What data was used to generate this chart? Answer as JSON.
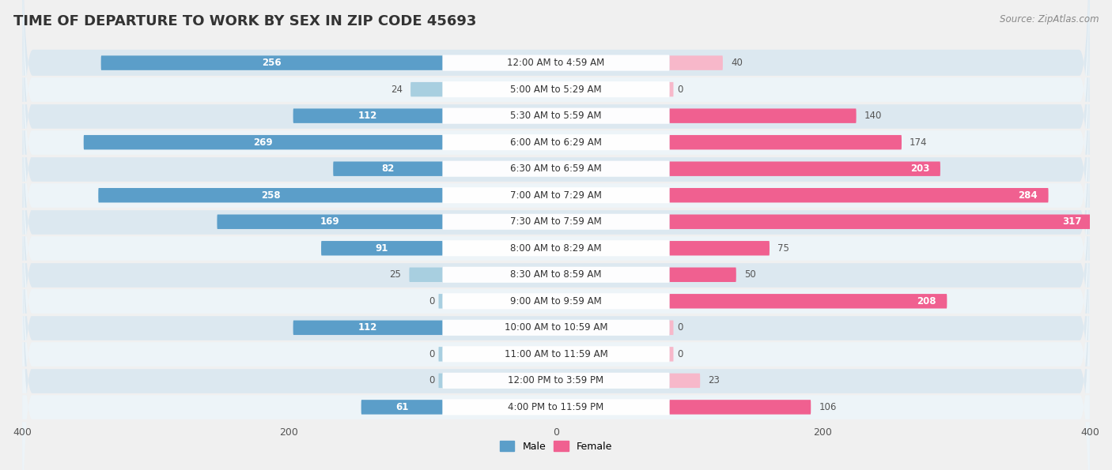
{
  "title": "TIME OF DEPARTURE TO WORK BY SEX IN ZIP CODE 45693",
  "source": "Source: ZipAtlas.com",
  "categories": [
    "12:00 AM to 4:59 AM",
    "5:00 AM to 5:29 AM",
    "5:30 AM to 5:59 AM",
    "6:00 AM to 6:29 AM",
    "6:30 AM to 6:59 AM",
    "7:00 AM to 7:29 AM",
    "7:30 AM to 7:59 AM",
    "8:00 AM to 8:29 AM",
    "8:30 AM to 8:59 AM",
    "9:00 AM to 9:59 AM",
    "10:00 AM to 10:59 AM",
    "11:00 AM to 11:59 AM",
    "12:00 PM to 3:59 PM",
    "4:00 PM to 11:59 PM"
  ],
  "male_values": [
    256,
    24,
    112,
    269,
    82,
    258,
    169,
    91,
    25,
    0,
    112,
    0,
    0,
    61
  ],
  "female_values": [
    40,
    0,
    140,
    174,
    203,
    284,
    317,
    75,
    50,
    208,
    0,
    0,
    23,
    106
  ],
  "male_color_dark": "#5b9ec9",
  "male_color_light": "#a8cfe0",
  "female_color_dark": "#f06090",
  "female_color_light": "#f7b8ca",
  "axis_max": 400,
  "background_color": "#f0f0f0",
  "row_color_dark": "#dde8f0",
  "row_color_light": "#eef4f8",
  "bar_height": 0.55,
  "title_fontsize": 13,
  "label_fontsize": 8.5,
  "tick_fontsize": 9,
  "source_fontsize": 8.5,
  "cat_label_threshold": 50,
  "female_inside_threshold": 200
}
